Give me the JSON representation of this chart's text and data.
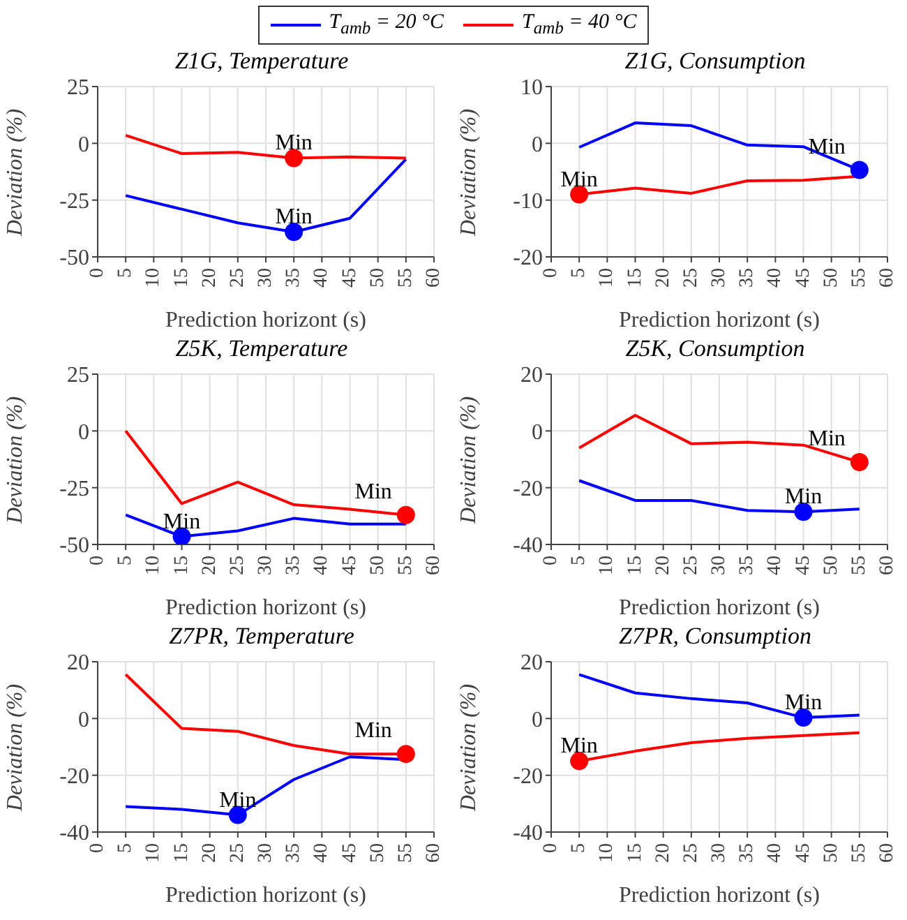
{
  "chart_data": [
    {
      "type": "line",
      "title": "Z1G, Temperature",
      "xlabel": "Prediction horizont (s)",
      "ylabel": "Deviation (%)",
      "x": [
        5,
        15,
        25,
        35,
        45,
        55
      ],
      "xlim": [
        0,
        60
      ],
      "xticks": [
        0,
        5,
        10,
        15,
        20,
        25,
        30,
        35,
        40,
        45,
        50,
        55,
        60
      ],
      "ylim": [
        -50,
        25
      ],
      "yticks": [
        -50,
        -25,
        0,
        25
      ],
      "grid": true,
      "legend": "top",
      "marker": "none",
      "line_style": "solid",
      "series": [
        {
          "name": "T$_{amb}$ = 20 °C",
          "color": "#0000ff",
          "values": [
            -23,
            -29,
            -35,
            -39,
            -33,
            -7
          ]
        },
        {
          "name": "T$_{amb}$ = 40 °C",
          "color": "#ff0000",
          "values": [
            3.5,
            -4.5,
            -4,
            -6.5,
            -6,
            -6.5
          ]
        },
        {
          "type": "scatter",
          "color": "#ff0000",
          "x": [
            35
          ],
          "values": [
            -6.5
          ],
          "marker": "circle"
        },
        {
          "type": "scatter",
          "color": "#0000ff",
          "x": [
            35
          ],
          "values": [
            -39
          ],
          "marker": "circle"
        }
      ],
      "annotations": [
        {
          "text": "Min",
          "x": 35,
          "y": -6.5
        },
        {
          "text": "Min",
          "x": 35,
          "y": -39
        }
      ]
    },
    {
      "type": "line",
      "title": "Z1G, Consumption",
      "xlabel": "Prediction horizont (s)",
      "ylabel": "Deviation (%)",
      "x": [
        5,
        15,
        25,
        35,
        45,
        55
      ],
      "xlim": [
        0,
        60
      ],
      "xticks": [
        0,
        5,
        10,
        15,
        20,
        25,
        30,
        35,
        40,
        45,
        50,
        55,
        60
      ],
      "ylim": [
        -20,
        10
      ],
      "yticks": [
        -20,
        -10,
        0,
        10
      ],
      "grid": true,
      "marker": "none",
      "line_style": "solid",
      "series": [
        {
          "color": "#0000ff",
          "values": [
            -0.7,
            3.6,
            3.1,
            -0.3,
            -0.6,
            -4.7
          ]
        },
        {
          "color": "#ff0000",
          "values": [
            -9,
            -7.9,
            -8.8,
            -6.6,
            -6.5,
            -5.8
          ]
        },
        {
          "type": "scatter",
          "color": "#ff0000",
          "x": [
            5
          ],
          "values": [
            -9
          ],
          "marker": "circle"
        },
        {
          "type": "scatter",
          "color": "#0000ff",
          "x": [
            55
          ],
          "values": [
            -4.7
          ],
          "marker": "circle"
        }
      ],
      "annotations": [
        {
          "text": "Min",
          "x": 5,
          "y": -9
        },
        {
          "text": "Min",
          "x": 55,
          "y": -4.7
        }
      ]
    },
    {
      "type": "line",
      "title": "Z5K, Temperature",
      "xlabel": "Prediction horizont (s)",
      "ylabel": "Deviation (%)",
      "x": [
        5,
        15,
        25,
        35,
        45,
        55
      ],
      "xlim": [
        0,
        60
      ],
      "xticks": [
        0,
        5,
        10,
        15,
        20,
        25,
        30,
        35,
        40,
        45,
        50,
        55,
        60
      ],
      "ylim": [
        -50,
        25
      ],
      "yticks": [
        -50,
        -25,
        0,
        25
      ],
      "grid": true,
      "marker": "none",
      "line_style": "solid",
      "series": [
        {
          "color": "#0000ff",
          "values": [
            -37,
            -46.5,
            -44,
            -38.5,
            -41,
            -41
          ]
        },
        {
          "color": "#ff0000",
          "values": [
            0,
            -32,
            -22.5,
            -32.5,
            -34.5,
            -37
          ]
        },
        {
          "type": "scatter",
          "color": "#0000ff",
          "x": [
            15
          ],
          "values": [
            -46.5
          ],
          "marker": "circle"
        },
        {
          "type": "scatter",
          "color": "#ff0000",
          "x": [
            55
          ],
          "values": [
            -37
          ],
          "marker": "circle"
        }
      ],
      "annotations": [
        {
          "text": "Min",
          "x": 15,
          "y": -46.5
        },
        {
          "text": "Min",
          "x": 55,
          "y": -37
        }
      ]
    },
    {
      "type": "line",
      "title": "Z5K, Consumption",
      "xlabel": "Prediction horizont (s)",
      "ylabel": "Deviation (%)",
      "x": [
        5,
        15,
        25,
        35,
        45,
        55
      ],
      "xlim": [
        0,
        60
      ],
      "xticks": [
        0,
        5,
        10,
        15,
        20,
        25,
        30,
        35,
        40,
        45,
        50,
        55,
        60
      ],
      "ylim": [
        -40,
        20
      ],
      "yticks": [
        -40,
        -20,
        0,
        20
      ],
      "grid": true,
      "marker": "none",
      "line_style": "solid",
      "series": [
        {
          "color": "#0000ff",
          "values": [
            -17.5,
            -24.5,
            -24.5,
            -28,
            -28.5,
            -27.5
          ]
        },
        {
          "color": "#ff0000",
          "values": [
            -6,
            5.5,
            -4.5,
            -4,
            -5,
            -11
          ]
        },
        {
          "type": "scatter",
          "color": "#0000ff",
          "x": [
            45
          ],
          "values": [
            -28.5
          ],
          "marker": "circle"
        },
        {
          "type": "scatter",
          "color": "#ff0000",
          "x": [
            55
          ],
          "values": [
            -11
          ],
          "marker": "circle"
        }
      ],
      "annotations": [
        {
          "text": "Min",
          "x": 45,
          "y": -28.5
        },
        {
          "text": "Min",
          "x": 55,
          "y": -11
        }
      ]
    },
    {
      "type": "line",
      "title": "Z7PR, Temperature",
      "xlabel": "Prediction horizont (s)",
      "ylabel": "Deviation (%)",
      "x": [
        5,
        15,
        25,
        35,
        45,
        55
      ],
      "xlim": [
        0,
        60
      ],
      "xticks": [
        0,
        5,
        10,
        15,
        20,
        25,
        30,
        35,
        40,
        45,
        50,
        55,
        60
      ],
      "ylim": [
        -40,
        20
      ],
      "yticks": [
        -40,
        -20,
        0,
        20
      ],
      "grid": true,
      "marker": "none",
      "line_style": "solid",
      "series": [
        {
          "color": "#ff0000",
          "values": [
            15.5,
            -3.5,
            -4.5,
            -9.5,
            -12.5,
            -12.5
          ]
        },
        {
          "color": "#0000ff",
          "values": [
            -31,
            -32,
            -34,
            -21.5,
            -13.5,
            -14.5
          ]
        },
        {
          "type": "scatter",
          "color": "#0000ff",
          "x": [
            25
          ],
          "values": [
            -34
          ],
          "marker": "circle"
        },
        {
          "type": "scatter",
          "color": "#ff0000",
          "x": [
            55
          ],
          "values": [
            -12.5
          ],
          "marker": "circle"
        }
      ],
      "annotations": [
        {
          "text": "Min",
          "x": 25,
          "y": -34
        },
        {
          "text": "Min",
          "x": 55,
          "y": -12.5
        }
      ]
    },
    {
      "type": "line",
      "title": "Z7PR, Consumption",
      "xlabel": "Prediction horizont (s)",
      "ylabel": "Deviation (%)",
      "x": [
        5,
        15,
        25,
        35,
        45,
        55
      ],
      "xlim": [
        0,
        60
      ],
      "xticks": [
        0,
        5,
        10,
        15,
        20,
        25,
        30,
        35,
        40,
        45,
        50,
        55,
        60
      ],
      "ylim": [
        -40,
        20
      ],
      "yticks": [
        -40,
        -20,
        0,
        20
      ],
      "grid": true,
      "marker": "none",
      "line_style": "solid",
      "series": [
        {
          "color": "#0000ff",
          "values": [
            15.5,
            9,
            7,
            5.5,
            0.3,
            1.2
          ]
        },
        {
          "color": "#ff0000",
          "values": [
            -15,
            -11.5,
            -8.5,
            -7,
            -6,
            -5
          ]
        },
        {
          "type": "scatter",
          "color": "#0000ff",
          "x": [
            45
          ],
          "values": [
            0.3
          ],
          "marker": "circle"
        },
        {
          "type": "scatter",
          "color": "#ff0000",
          "x": [
            5
          ],
          "values": [
            -15
          ],
          "marker": "circle"
        }
      ],
      "annotations": [
        {
          "text": "Min",
          "x": 45,
          "y": 0.3
        },
        {
          "text": "Min",
          "x": 5,
          "y": -15
        }
      ]
    }
  ]
}
